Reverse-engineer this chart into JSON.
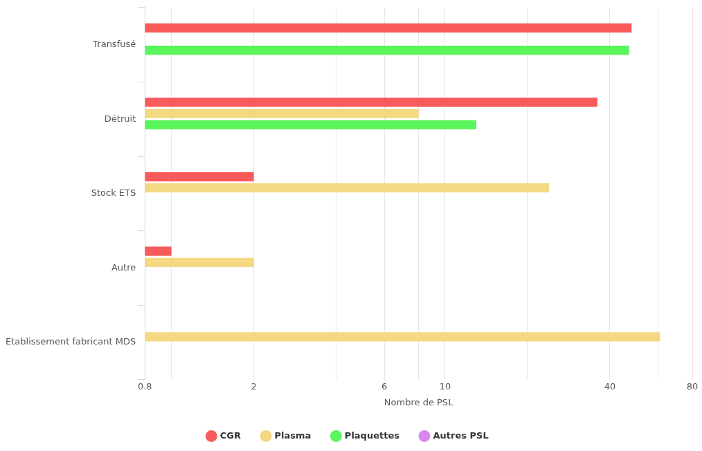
{
  "chart_data": {
    "type": "bar",
    "orientation": "horizontal",
    "log": "x",
    "xlabel": "Nombre de PSL",
    "categories": [
      "Transfusé",
      "Détruit",
      "Stock ETS",
      "Autre",
      "Etablissement fabricant MDS"
    ],
    "series": [
      {
        "name": "CGR",
        "color": "#f95a5a",
        "values": [
          48,
          36,
          2,
          1,
          null
        ]
      },
      {
        "name": "Plasma",
        "color": "#f5d882",
        "values": [
          null,
          8,
          24,
          2,
          61
        ]
      },
      {
        "name": "Plaquettes",
        "color": "#5af55a",
        "values": [
          47,
          13,
          null,
          null,
          null
        ]
      },
      {
        "name": "Autres PSL",
        "color": "#d985f2",
        "values": [
          null,
          null,
          null,
          null,
          null
        ]
      }
    ],
    "xlim": [
      0.8,
      80
    ],
    "xticks": [
      0.8,
      {
        "value": 1,
        "label": null
      },
      2,
      {
        "value": 4,
        "label": null
      },
      6,
      {
        "value": 8,
        "label": null
      },
      10,
      {
        "value": 20,
        "label": null
      },
      40,
      {
        "value": 60,
        "label": null
      },
      80
    ],
    "grid": "x",
    "legend": "bottom"
  }
}
